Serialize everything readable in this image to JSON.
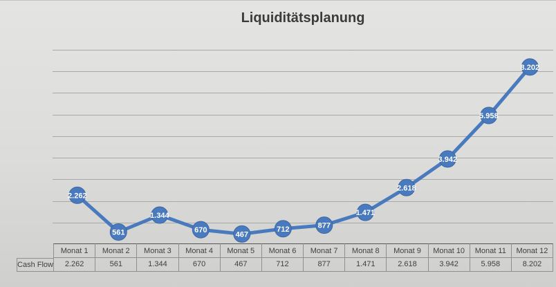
{
  "chart_data": {
    "type": "line",
    "title": "Liquiditätsplanung",
    "categories": [
      "Monat 1",
      "Monat 2",
      "Monat 3",
      "Monat 4",
      "Monat 5",
      "Monat 6",
      "Monat 7",
      "Monat 8",
      "Monat 9",
      "Monat 10",
      "Monat 11",
      "Monat 12"
    ],
    "series": [
      {
        "name": "Cash Flow",
        "values": [
          2262,
          561,
          1344,
          670,
          467,
          712,
          877,
          1471,
          2618,
          3942,
          5958,
          8202
        ],
        "labels": [
          "2.262",
          "561",
          "1.344",
          "670",
          "467",
          "712",
          "877",
          "1.471",
          "2.618",
          "3.942",
          "5.958",
          "8.202"
        ]
      }
    ],
    "xlabel": "",
    "ylabel": "",
    "ylim": [
      0,
      9000
    ],
    "y_major_unit": 1000,
    "y_axis_labels_visible": false,
    "grid": true,
    "legend_position": "none",
    "data_table_below_axis": true,
    "value_label_position": "center",
    "colors": {
      "series": "#4a7abe",
      "series_border": "#3d66a3",
      "data_label_text": "#ffffff",
      "gridline": "#a8a8a6",
      "title_text": "#3b3b3b",
      "table_text": "#3f3f3f",
      "table_border": "#8f8f8f",
      "axis_line": "#565656",
      "background_top": "#e4e4e2",
      "background_bottom": "#cfcfcd"
    }
  }
}
